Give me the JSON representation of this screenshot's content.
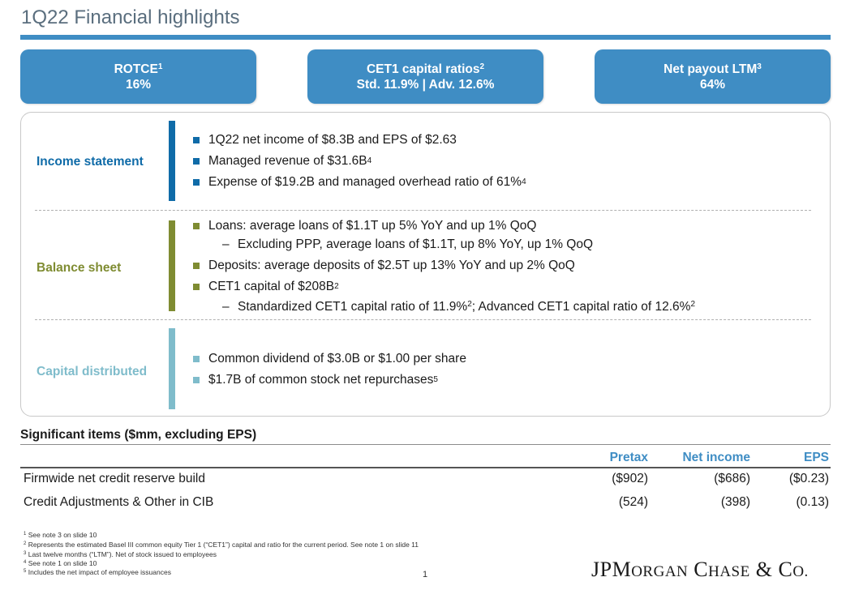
{
  "title": "1Q22 Financial highlights",
  "kpis": [
    {
      "label": "ROTCE",
      "sup": "1",
      "value": "16%"
    },
    {
      "label": "CET1 capital ratios",
      "sup": "2",
      "value": "Std. 11.9% | Adv. 12.6%"
    },
    {
      "label": "Net payout LTM",
      "sup": "3",
      "value": "64%"
    }
  ],
  "sections": {
    "income": {
      "label": "Income statement",
      "color": "#0f6ba8",
      "bullets": [
        {
          "text": "1Q22 net income of $8.3B and EPS of $2.63",
          "sup": ""
        },
        {
          "text": "Managed revenue of $31.6B",
          "sup": "4"
        },
        {
          "text": "Expense of $19.2B and managed overhead ratio of 61%",
          "sup": "4"
        }
      ]
    },
    "balance": {
      "label": "Balance sheet",
      "color": "#7f8c32",
      "bullets": [
        {
          "text": "Loans: average loans of $1.1T up 5% YoY and up 1% QoQ",
          "sup": ""
        },
        {
          "text": "Deposits: average deposits of $2.5T up 13% YoY and up 2% QoQ",
          "sup": ""
        },
        {
          "text": "CET1 capital of $208B",
          "sup": "2"
        }
      ],
      "subs": [
        {
          "dash": "–",
          "text": "Excluding PPP, average loans of $1.1T, up 8% YoY, up 1% QoQ"
        },
        {
          "dash": "–",
          "text_a": "Standardized CET1 capital ratio of 11.9%",
          "sup_a": "2",
          "text_b": "; Advanced CET1 capital ratio of 12.6%",
          "sup_b": "2"
        }
      ]
    },
    "capital": {
      "label": "Capital distributed",
      "color": "#7fbccb",
      "bullets": [
        {
          "text": "Common dividend of $3.0B or $1.00 per share",
          "sup": ""
        },
        {
          "text": "$1.7B of common stock net repurchases",
          "sup": "5"
        }
      ]
    }
  },
  "significant_items": {
    "title": "Significant items ($mm, excluding EPS)",
    "headers": [
      "Pretax",
      "Net income",
      "EPS"
    ],
    "rows": [
      {
        "label": "Firmwide net credit reserve build",
        "pretax": "($902)",
        "net_income": "($686)",
        "eps": "($0.23)"
      },
      {
        "label": "Credit Adjustments & Other in CIB",
        "pretax": "(524)",
        "net_income": "(398)",
        "eps": "(0.13)"
      }
    ]
  },
  "footnotes": [
    {
      "n": "1",
      "text": "See note 3 on slide 10"
    },
    {
      "n": "2",
      "text": "Represents the estimated Basel III common equity Tier 1 (“CET1”) capital and ratio for the current period. See note 1 on slide 11"
    },
    {
      "n": "3",
      "text": "Last twelve months (“LTM”). Net of stock issued to employees"
    },
    {
      "n": "4",
      "text": "See note 1 on slide 10"
    },
    {
      "n": "5",
      "text": "Includes the net impact of employee issuances"
    }
  ],
  "page_number": "1",
  "logo": {
    "jp": "JP",
    "m": "M",
    "organ": "ORGAN",
    "c": "C",
    "hase": "HASE",
    "amp": " & ",
    "co": "C",
    "o": "O."
  }
}
